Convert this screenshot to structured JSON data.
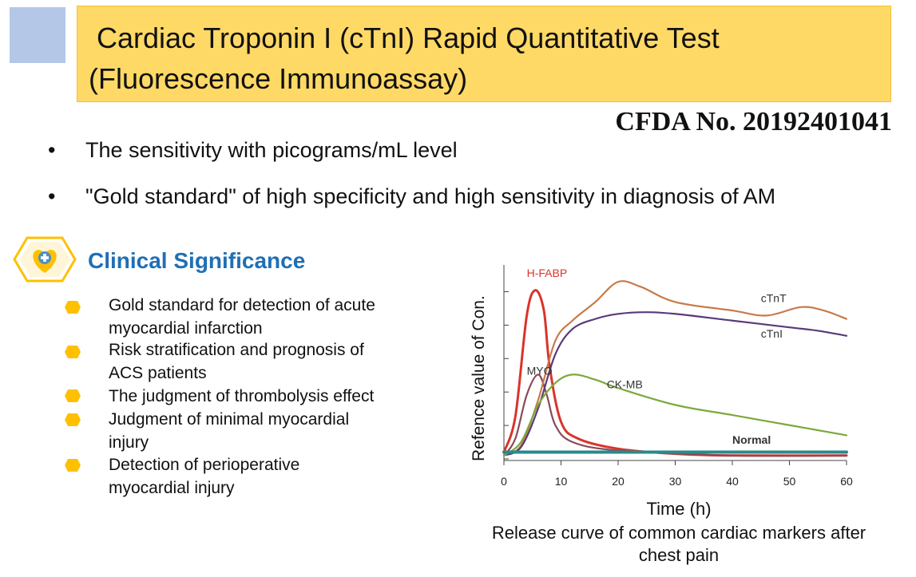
{
  "slide": {
    "title_line1": "Cardiac Troponin I (cTnI) Rapid Quantitative Test",
    "title_line2": "(Fluorescence Immunoassay)",
    "cfda": "CFDA No. 20192401041",
    "bullets": [
      "The sensitivity with picograms/mL level",
      "\"Gold standard\" of high specificity and high sensitivity in diagnosis of AM"
    ],
    "bullet_marker": "•"
  },
  "clinical": {
    "title": "Clinical Significance",
    "icon": "heart-plus-icon",
    "items": [
      {
        "line1": "Gold standard for detection of acute",
        "line2": "myocardial infarction"
      },
      {
        "line1": "Risk stratification and prognosis of",
        "line2": "ACS patients"
      },
      {
        "line1": "The judgment of thrombolysis effect",
        "line2": ""
      },
      {
        "line1": "Judgment of minimal myocardial",
        "line2": "injury"
      },
      {
        "line1": "Detection of perioperative",
        "line2": "myocardial injury"
      }
    ],
    "colors": {
      "accent": "#ffc000",
      "title": "#1f6fb5"
    }
  },
  "chart_data": {
    "type": "line",
    "xlabel": "Time (h)",
    "ylabel": "Refence value of Con.",
    "xlim": [
      0,
      60
    ],
    "x_ticks": [
      0,
      10,
      20,
      30,
      40,
      50,
      60
    ],
    "y_scale": "relative (no values printed)",
    "grid": false,
    "caption": "Release curve of common cardiac markers after chest pain",
    "series": [
      {
        "name": "H-FABP",
        "color": "#d9342b",
        "points": [
          [
            0,
            0.04
          ],
          [
            2,
            0.25
          ],
          [
            4,
            0.85
          ],
          [
            5.5,
            1.0
          ],
          [
            7,
            0.88
          ],
          [
            8,
            0.55
          ],
          [
            10,
            0.22
          ],
          [
            13,
            0.12
          ],
          [
            20,
            0.06
          ],
          [
            30,
            0.03
          ],
          [
            40,
            0.02
          ],
          [
            60,
            0.02
          ]
        ]
      },
      {
        "name": "MYO",
        "color": "#8a4a5a",
        "points": [
          [
            0,
            0.02
          ],
          [
            2,
            0.12
          ],
          [
            4,
            0.38
          ],
          [
            6,
            0.5
          ],
          [
            7.5,
            0.38
          ],
          [
            9,
            0.2
          ],
          [
            12,
            0.1
          ],
          [
            20,
            0.05
          ],
          [
            40,
            0.02
          ],
          [
            60,
            0.02
          ]
        ]
      },
      {
        "name": "cTnT",
        "color": "#c87a4a",
        "points": [
          [
            0,
            0.02
          ],
          [
            3,
            0.08
          ],
          [
            6,
            0.35
          ],
          [
            9,
            0.7
          ],
          [
            12,
            0.82
          ],
          [
            16,
            0.93
          ],
          [
            20,
            1.05
          ],
          [
            24,
            1.02
          ],
          [
            30,
            0.93
          ],
          [
            40,
            0.88
          ],
          [
            46,
            0.85
          ],
          [
            52,
            0.9
          ],
          [
            56,
            0.88
          ],
          [
            60,
            0.83
          ]
        ]
      },
      {
        "name": "cTnI",
        "color": "#5a3a78",
        "points": [
          [
            0,
            0.02
          ],
          [
            3,
            0.07
          ],
          [
            6,
            0.3
          ],
          [
            9,
            0.62
          ],
          [
            12,
            0.77
          ],
          [
            16,
            0.83
          ],
          [
            20,
            0.86
          ],
          [
            25,
            0.87
          ],
          [
            30,
            0.86
          ],
          [
            40,
            0.82
          ],
          [
            50,
            0.78
          ],
          [
            55,
            0.76
          ],
          [
            60,
            0.73
          ]
        ]
      },
      {
        "name": "CK-MB",
        "color": "#7ca83c",
        "points": [
          [
            0,
            0.02
          ],
          [
            3,
            0.1
          ],
          [
            6,
            0.32
          ],
          [
            9,
            0.45
          ],
          [
            12,
            0.5
          ],
          [
            16,
            0.47
          ],
          [
            20,
            0.42
          ],
          [
            30,
            0.32
          ],
          [
            40,
            0.26
          ],
          [
            50,
            0.2
          ],
          [
            60,
            0.14
          ]
        ]
      },
      {
        "name": "Normal",
        "color": "#2a8a8a",
        "points": [
          [
            0,
            0.04
          ],
          [
            60,
            0.04
          ]
        ]
      }
    ],
    "labels": [
      {
        "text": "H-FABP",
        "x": 4,
        "y": 1.08,
        "color": "#d9342b"
      },
      {
        "text": "cTnT",
        "x": 45,
        "y": 0.93,
        "color": "#333"
      },
      {
        "text": "cTnI",
        "x": 45,
        "y": 0.72,
        "color": "#333"
      },
      {
        "text": "MYO",
        "x": 4,
        "y": 0.5,
        "color": "#333"
      },
      {
        "text": "CK-MB",
        "x": 18,
        "y": 0.42,
        "color": "#333"
      },
      {
        "text": "Normal",
        "x": 40,
        "y": 0.09,
        "color": "#333",
        "bold": true
      }
    ]
  }
}
